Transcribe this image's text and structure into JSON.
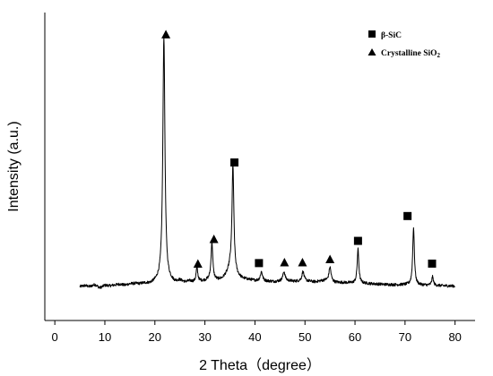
{
  "chart_data": {
    "type": "line",
    "title": "",
    "xlabel": "2 Theta（degree）",
    "ylabel": "Intensity (a.u.)",
    "xlim": [
      -2,
      84
    ],
    "x_ticks": [
      0,
      10,
      20,
      30,
      40,
      50,
      60,
      70,
      80
    ],
    "ylim": [
      0,
      100
    ],
    "y_ticks_shown": false,
    "grid": false,
    "legend_position": "top-right",
    "legend": [
      {
        "marker": "square",
        "label": "β-SiC",
        "label_main": "β-SiC",
        "label_sub": ""
      },
      {
        "marker": "triangle",
        "label": "Crystalline SiO₂",
        "label_main": "Crystalline SiO",
        "label_sub": "2"
      }
    ],
    "series": [
      {
        "baseline": [
          [
            5.0,
            2.0
          ],
          [
            6.0,
            2.4
          ],
          [
            7.0,
            2.0
          ],
          [
            8.0,
            2.8
          ],
          [
            9.0,
            1.5
          ],
          [
            10.0,
            2.5
          ],
          [
            11.0,
            2.3
          ],
          [
            12.0,
            2.6
          ],
          [
            13.0,
            2.9
          ],
          [
            14.0,
            2.5
          ],
          [
            15.0,
            3.0
          ],
          [
            16.0,
            3.1
          ],
          [
            17.0,
            3.0
          ],
          [
            18.0,
            3.2
          ],
          [
            19.0,
            3.0
          ],
          [
            20.0,
            3.5
          ],
          [
            20.8,
            3.9
          ],
          [
            23.0,
            3.8
          ],
          [
            24.0,
            3.4
          ],
          [
            25.0,
            4.2
          ],
          [
            26.0,
            3.6
          ],
          [
            27.0,
            4.0
          ],
          [
            28.0,
            3.6
          ],
          [
            29.0,
            4.0
          ],
          [
            30.0,
            4.2
          ],
          [
            31.0,
            4.8
          ],
          [
            32.5,
            4.5
          ],
          [
            33.5,
            5.0
          ],
          [
            34.5,
            7.0
          ],
          [
            35.0,
            9.0
          ],
          [
            36.5,
            6.0
          ],
          [
            37.5,
            5.0
          ],
          [
            39.0,
            4.6
          ],
          [
            40.0,
            4.3
          ],
          [
            42.0,
            4.1
          ],
          [
            44.0,
            3.9
          ],
          [
            46.0,
            4.3
          ],
          [
            48.0,
            4.0
          ],
          [
            50.0,
            4.2
          ],
          [
            52.0,
            3.8
          ],
          [
            54.0,
            4.4
          ],
          [
            56.0,
            3.6
          ],
          [
            58.0,
            3.5
          ],
          [
            60.0,
            3.3
          ],
          [
            62.0,
            3.2
          ],
          [
            64.0,
            3.0
          ],
          [
            66.0,
            2.8
          ],
          [
            68.0,
            2.7
          ],
          [
            70.0,
            2.7
          ],
          [
            72.0,
            2.6
          ],
          [
            74.0,
            2.5
          ],
          [
            76.0,
            2.4
          ],
          [
            78.0,
            2.3
          ],
          [
            80.0,
            2.2
          ]
        ],
        "peaks": [
          {
            "x": 21.8,
            "height": 94,
            "width": 0.25
          },
          {
            "x": 28.4,
            "height": 5.5,
            "width": 0.2
          },
          {
            "x": 31.4,
            "height": 14.5,
            "width": 0.2
          },
          {
            "x": 35.6,
            "height": 41,
            "width": 0.22
          },
          {
            "x": 41.3,
            "height": 3.5,
            "width": 0.25
          },
          {
            "x": 45.8,
            "height": 3.5,
            "width": 0.25
          },
          {
            "x": 49.6,
            "height": 3.6,
            "width": 0.25
          },
          {
            "x": 55.0,
            "height": 5.5,
            "width": 0.25
          },
          {
            "x": 60.6,
            "height": 13,
            "width": 0.2
          },
          {
            "x": 71.7,
            "height": 22,
            "width": 0.2
          },
          {
            "x": 75.5,
            "height": 3.3,
            "width": 0.2
          }
        ]
      }
    ],
    "annotations": [
      {
        "x": 22.2,
        "y": 98.5,
        "marker": "triangle"
      },
      {
        "x": 28.6,
        "y": 10.8,
        "marker": "triangle"
      },
      {
        "x": 31.8,
        "y": 20.2,
        "marker": "triangle"
      },
      {
        "x": 35.9,
        "y": 49.5,
        "marker": "square"
      },
      {
        "x": 40.8,
        "y": 11.0,
        "marker": "square"
      },
      {
        "x": 45.9,
        "y": 11.3,
        "marker": "triangle"
      },
      {
        "x": 49.5,
        "y": 11.3,
        "marker": "triangle"
      },
      {
        "x": 55.0,
        "y": 12.5,
        "marker": "triangle"
      },
      {
        "x": 60.6,
        "y": 19.5,
        "marker": "square"
      },
      {
        "x": 70.5,
        "y": 29.0,
        "marker": "square"
      },
      {
        "x": 75.4,
        "y": 10.8,
        "marker": "square"
      }
    ]
  }
}
